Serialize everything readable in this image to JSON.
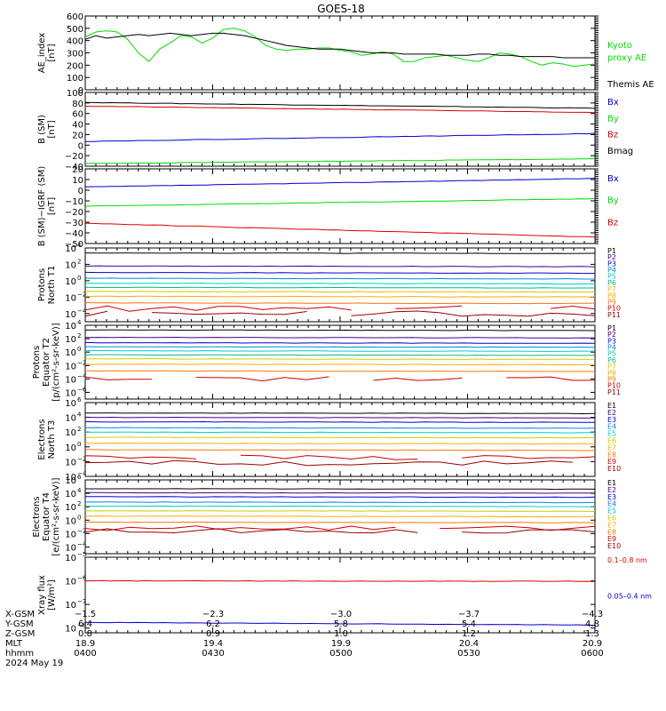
{
  "title": "GOES-18",
  "panels": [
    {
      "ylabel": [
        "AE_index",
        "[nT]"
      ],
      "ylim": [
        0,
        600
      ],
      "ticks": [
        "0",
        "100",
        "200",
        "300",
        "400",
        "500",
        "600"
      ],
      "legend": [
        {
          "text": "Kyoto",
          "color": "#00dd00"
        },
        {
          "text": "proxy AE",
          "color": "#00dd00"
        },
        {
          "text": "Themis AE",
          "color": "#000000"
        }
      ],
      "series": [
        {
          "name": "Kyoto proxy AE",
          "color": "#00dd00",
          "values": [
            430,
            470,
            480,
            470,
            410,
            300,
            230,
            330,
            380,
            440,
            430,
            380,
            420,
            490,
            500,
            480,
            430,
            360,
            330,
            320,
            330,
            330,
            340,
            340,
            320,
            310,
            280,
            290,
            310,
            290,
            230,
            230,
            260,
            270,
            280,
            260,
            240,
            230,
            260,
            300,
            290,
            270,
            230,
            200,
            220,
            210,
            190,
            200,
            210
          ]
        },
        {
          "name": "Themis AE",
          "color": "#000000",
          "values": [
            410,
            440,
            420,
            430,
            440,
            450,
            440,
            450,
            460,
            450,
            440,
            450,
            460,
            460,
            450,
            440,
            420,
            400,
            380,
            360,
            350,
            340,
            330,
            330,
            330,
            320,
            310,
            300,
            300,
            300,
            290,
            290,
            290,
            290,
            280,
            280,
            280,
            290,
            290,
            280,
            280,
            270,
            270,
            270,
            270,
            260,
            260,
            260,
            260
          ]
        }
      ]
    },
    {
      "ylabel": [
        "B (SM)",
        "[nT]"
      ],
      "ylim": [
        -40,
        100
      ],
      "ticks": [
        "−40",
        "−20",
        "0",
        "20",
        "40",
        "60",
        "80",
        "100"
      ],
      "legend": [
        {
          "text": "Bx",
          "color": "#0000cc"
        },
        {
          "text": "By",
          "color": "#00dd00"
        },
        {
          "text": "Bz",
          "color": "#dd0000"
        },
        {
          "text": "Bmag",
          "color": "#000000"
        }
      ],
      "series": [
        {
          "name": "Bmag",
          "color": "#000000",
          "start": 81,
          "end": 70
        },
        {
          "name": "Bz",
          "color": "#dd0000",
          "start": 74,
          "end": 62
        },
        {
          "name": "Bx",
          "color": "#0000cc",
          "start": 7,
          "end": 22
        },
        {
          "name": "By",
          "color": "#00dd00",
          "start": -35,
          "end": -26
        }
      ]
    },
    {
      "ylabel": [
        "B (SM)−IGRF (SM)",
        "[nT]"
      ],
      "ylim": [
        -50,
        20
      ],
      "ticks": [
        "−50",
        "−40",
        "−30",
        "−20",
        "−10",
        "0",
        "10",
        "20"
      ],
      "legend": [
        {
          "text": "Bx",
          "color": "#0000cc"
        },
        {
          "text": "By",
          "color": "#00dd00"
        },
        {
          "text": "Bz",
          "color": "#dd0000"
        }
      ],
      "series": [
        {
          "name": "Bx",
          "color": "#0000cc",
          "start": 3,
          "end": 11
        },
        {
          "name": "By",
          "color": "#00dd00",
          "start": -15,
          "end": -8
        },
        {
          "name": "Bz",
          "color": "#dd0000",
          "start": -31,
          "end": -44
        }
      ]
    },
    {
      "ylabel": [
        "Protons",
        "North T1"
      ],
      "log": true,
      "ylim": [
        -5,
        4
      ],
      "ticks": [
        {
          "b": "10",
          "e": "4"
        },
        {
          "b": "10",
          "e": "2"
        },
        {
          "b": "10",
          "e": "0"
        },
        {
          "b": "10",
          "e": "−2"
        },
        {
          "b": "10",
          "e": "−4"
        }
      ],
      "tickvals": [
        4,
        2,
        0,
        -2,
        -4
      ],
      "legend": [
        {
          "text": "P1",
          "color": "#000000"
        },
        {
          "text": "P2",
          "color": "#440088"
        },
        {
          "text": "P3",
          "color": "#0000cc"
        },
        {
          "text": "P4",
          "color": "#0088dd"
        },
        {
          "text": "P5",
          "color": "#00cccc"
        },
        {
          "text": "P6",
          "color": "#00bb88"
        },
        {
          "text": "P7",
          "color": "#cccc00"
        },
        {
          "text": "P8",
          "color": "#ffaa00"
        },
        {
          "text": "P9",
          "color": "#ff7700"
        },
        {
          "text": "P10",
          "color": "#cc0000"
        },
        {
          "text": "P11",
          "color": "#990000"
        }
      ],
      "levels": [
        3.4,
        1.8,
        1.0,
        0.3,
        -0.3,
        -0.8,
        -1.3,
        -1.9,
        -2.7,
        -3.4,
        -4.0
      ]
    },
    {
      "ylabel": [
        "Protons",
        "Equator T2",
        "[p/(cm²‑s‑sr‑keV)]"
      ],
      "log": true,
      "ylim": [
        -7,
        4
      ],
      "ticks": [
        {
          "b": "10",
          "e": "4"
        },
        {
          "b": "10",
          "e": "2"
        },
        {
          "b": "10",
          "e": "0"
        },
        {
          "b": "10",
          "e": "−2"
        },
        {
          "b": "10",
          "e": "−4"
        },
        {
          "b": "10",
          "e": "−6"
        }
      ],
      "tickvals": [
        4,
        2,
        0,
        -2,
        -4,
        -6
      ],
      "legend": [
        {
          "text": "P1",
          "color": "#000000"
        },
        {
          "text": "P2",
          "color": "#440088"
        },
        {
          "text": "P3",
          "color": "#0000cc"
        },
        {
          "text": "P4",
          "color": "#0088dd"
        },
        {
          "text": "P5",
          "color": "#00cccc"
        },
        {
          "text": "P6",
          "color": "#00bb88"
        },
        {
          "text": "P7",
          "color": "#cccc00"
        },
        {
          "text": "P8",
          "color": "#ffaa00"
        },
        {
          "text": "P9",
          "color": "#ff7700"
        },
        {
          "text": "P10",
          "color": "#cc0000"
        },
        {
          "text": "P11",
          "color": "#990000"
        }
      ],
      "levels": [
        3.3,
        2.2,
        1.4,
        0.8,
        0.2,
        -0.4,
        -1.0,
        -1.8,
        -2.8,
        -4.0,
        -8
      ]
    },
    {
      "ylabel": [
        "Electrons",
        "North T3"
      ],
      "log": true,
      "ylim": [
        -4,
        6
      ],
      "ticks": [
        {
          "b": "10",
          "e": "6"
        },
        {
          "b": "10",
          "e": "4"
        },
        {
          "b": "10",
          "e": "2"
        },
        {
          "b": "10",
          "e": "0"
        },
        {
          "b": "10",
          "e": "−2"
        },
        {
          "b": "10",
          "e": "−4"
        }
      ],
      "tickvals": [
        6,
        4,
        2,
        0,
        -2,
        -4
      ],
      "legend": [
        {
          "text": "E1",
          "color": "#000000"
        },
        {
          "text": "E2",
          "color": "#440088"
        },
        {
          "text": "E3",
          "color": "#0000cc"
        },
        {
          "text": "E4",
          "color": "#0088dd"
        },
        {
          "text": "E5",
          "color": "#00cccc"
        },
        {
          "text": "E6",
          "color": "#cccc00"
        },
        {
          "text": "E7",
          "color": "#ffaa00"
        },
        {
          "text": "E8",
          "color": "#ff7700"
        },
        {
          "text": "E9",
          "color": "#cc0000"
        },
        {
          "text": "E10",
          "color": "#990000"
        }
      ],
      "levels": [
        4.6,
        4.0,
        3.4,
        2.6,
        2.0,
        1.3,
        0.5,
        -0.4,
        -1.4,
        -2.2
      ]
    },
    {
      "ylabel": [
        "Electrons",
        "Equator T4",
        "[e/(cm²‑s‑sr‑keV)]"
      ],
      "log": true,
      "ylim": [
        -5,
        6
      ],
      "ticks": [
        {
          "b": "10",
          "e": "6"
        },
        {
          "b": "10",
          "e": "4"
        },
        {
          "b": "10",
          "e": "2"
        },
        {
          "b": "10",
          "e": "0"
        },
        {
          "b": "10",
          "e": "−2"
        },
        {
          "b": "10",
          "e": "−4"
        }
      ],
      "tickvals": [
        6,
        4,
        2,
        0,
        -2,
        -4
      ],
      "legend": [
        {
          "text": "E1",
          "color": "#000000"
        },
        {
          "text": "E2",
          "color": "#440088"
        },
        {
          "text": "E3",
          "color": "#0000cc"
        },
        {
          "text": "E4",
          "color": "#0088dd"
        },
        {
          "text": "E5",
          "color": "#00cccc"
        },
        {
          "text": "E6",
          "color": "#cccc00"
        },
        {
          "text": "E7",
          "color": "#ffaa00"
        },
        {
          "text": "E8",
          "color": "#ff7700"
        },
        {
          "text": "E9",
          "color": "#cc0000"
        },
        {
          "text": "E10",
          "color": "#990000"
        }
      ],
      "levels": [
        4.7,
        4.1,
        3.5,
        2.7,
        2.1,
        1.4,
        0.6,
        -0.3,
        -1.2,
        -1.6
      ]
    },
    {
      "ylabel": [
        "Xray flux",
        "[W/m²]"
      ],
      "log": true,
      "ylim": [
        -8.2,
        -5
      ],
      "ticks": [
        {
          "b": "10",
          "e": "−5"
        },
        {
          "b": "10",
          "e": "−6"
        },
        {
          "b": "10",
          "e": "−7"
        },
        {
          "b": "10",
          "e": "−8"
        }
      ],
      "tickvals": [
        -5,
        -6,
        -7,
        -8
      ],
      "legend": [
        {
          "text": "0.1–0.8 nm",
          "color": "#dd0000"
        },
        {
          "text": "0.05–0.4 nm",
          "color": "#0000cc"
        }
      ],
      "series": [
        {
          "name": "0.1–0.8 nm",
          "color": "#dd0000",
          "start": -6.0,
          "end": -6.02
        },
        {
          "name": "0.05–0.4 nm",
          "color": "#0000cc",
          "start": -7.76,
          "end": -7.87
        }
      ]
    }
  ],
  "footer": {
    "labels": [
      "X-GSM",
      "Y-GSM",
      "Z-GSM",
      "MLT",
      "hhmm"
    ],
    "columns": [
      {
        "x_gsm": "−1.5",
        "y_gsm": "6.4",
        "z_gsm": "0.8",
        "mlt": "18.9",
        "hhmm": "0400"
      },
      {
        "x_gsm": "−2.3",
        "y_gsm": "6.2",
        "z_gsm": "0.9",
        "mlt": "19.4",
        "hhmm": "0430"
      },
      {
        "x_gsm": "−3.0",
        "y_gsm": "5.8",
        "z_gsm": "1.0",
        "mlt": "19.9",
        "hhmm": "0500"
      },
      {
        "x_gsm": "−3.7",
        "y_gsm": "5.4",
        "z_gsm": "1.2",
        "mlt": "20.4",
        "hhmm": "0530"
      },
      {
        "x_gsm": "−4.3",
        "y_gsm": "4.8",
        "z_gsm": "1.3",
        "mlt": "20.9",
        "hhmm": "0600"
      }
    ],
    "date": "2024 May 19"
  },
  "chart_data": {
    "type": "line",
    "title": "GOES-18",
    "x": [
      "0400",
      "0430",
      "0500",
      "0530",
      "0600"
    ],
    "xlabel": "hhmm"
  }
}
